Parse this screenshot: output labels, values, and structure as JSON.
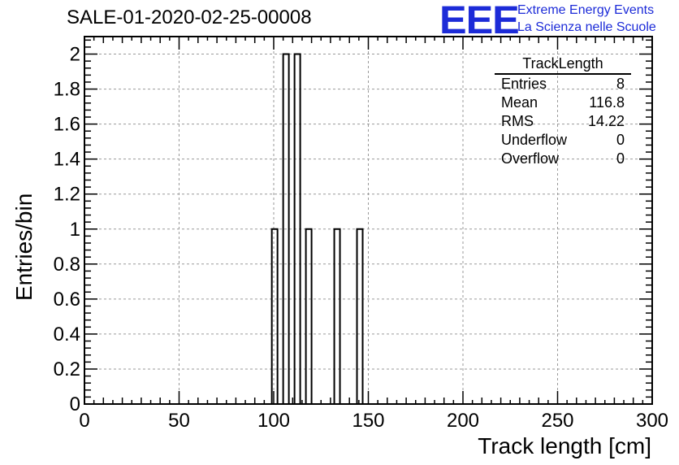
{
  "header": {
    "title": "SALE-01-2020-02-25-00008",
    "logo_text": "EEE",
    "logo_line1": "Extreme Energy Events",
    "logo_line2": "La Scienza nelle Scuole"
  },
  "stats_box": {
    "title": "TrackLength",
    "rows": [
      {
        "label": "Entries",
        "value": "8"
      },
      {
        "label": "Mean",
        "value": "116.8"
      },
      {
        "label": "RMS",
        "value": "14.22"
      },
      {
        "label": "Underflow",
        "value": "0"
      },
      {
        "label": "Overflow",
        "value": "0"
      }
    ]
  },
  "colors": {
    "brand": "#1c2bd8",
    "grid": "#9a9a9a",
    "bars": "#000000"
  },
  "chart_data": {
    "type": "bar",
    "title": "SALE-01-2020-02-25-00008",
    "xlabel": "Track length [cm]",
    "ylabel": "Entries/bin",
    "xlim": [
      0,
      300
    ],
    "ylim": [
      0,
      2.1
    ],
    "bin_width": 3,
    "x_ticks": [
      0,
      50,
      100,
      150,
      200,
      250,
      300
    ],
    "x_tick_labels": [
      "0",
      "50",
      "100",
      "150",
      "200",
      "250",
      "300"
    ],
    "y_ticks": [
      0,
      0.2,
      0.4,
      0.6,
      0.8,
      1,
      1.2,
      1.4,
      1.6,
      1.8,
      2
    ],
    "y_tick_labels": [
      "0",
      "0.2",
      "0.4",
      "0.6",
      "0.8",
      "1",
      "1.2",
      "1.4",
      "1.6",
      "1.8",
      "2"
    ],
    "grid": true,
    "legend": "top-right",
    "bins": [
      {
        "x_low": 99,
        "x_high": 102,
        "value": 1
      },
      {
        "x_low": 105,
        "x_high": 108,
        "value": 2
      },
      {
        "x_low": 111,
        "x_high": 114,
        "value": 2
      },
      {
        "x_low": 117,
        "x_high": 120,
        "value": 1
      },
      {
        "x_low": 132,
        "x_high": 135,
        "value": 1
      },
      {
        "x_low": 144,
        "x_high": 147,
        "value": 1
      }
    ]
  }
}
